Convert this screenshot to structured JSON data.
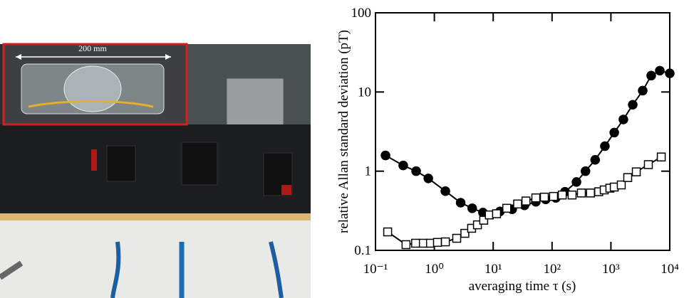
{
  "photo": {
    "inset_label": "200 mm"
  },
  "chart_data": {
    "type": "line",
    "xlabel": "averaging time τ (s)",
    "ylabel": "relative Allan standard deviation (pT)",
    "xscale": "log",
    "yscale": "log",
    "xlim": [
      0.1,
      10000
    ],
    "ylim": [
      0.1,
      100
    ],
    "xticks": [
      {
        "value": 0.1,
        "label": "10⁻¹"
      },
      {
        "value": 1,
        "label": "10⁰"
      },
      {
        "value": 10,
        "label": "10¹"
      },
      {
        "value": 100,
        "label": "10²"
      },
      {
        "value": 1000,
        "label": "10³"
      },
      {
        "value": 10000,
        "label": "10⁴"
      }
    ],
    "yticks": [
      0.1,
      1,
      10,
      100
    ],
    "series": [
      {
        "color": "#000000",
        "marker": "circle",
        "filled": true,
        "x": [
          0.148,
          0.296,
          0.49,
          0.79,
          1.54,
          2.8,
          4.4,
          6.7,
          13,
          21,
          34,
          53,
          78,
          116,
          166,
          260,
          370,
          540,
          790,
          1140,
          1630,
          2350,
          3470,
          4840,
          6770,
          10000
        ],
        "values": [
          1.58,
          1.18,
          1.0,
          0.81,
          0.56,
          0.4,
          0.34,
          0.3,
          0.31,
          0.33,
          0.37,
          0.41,
          0.44,
          0.46,
          0.55,
          0.73,
          1.0,
          1.39,
          2.07,
          3.07,
          4.5,
          6.9,
          10.4,
          16.1,
          18.6,
          17.2
        ]
      },
      {
        "color": "#000000",
        "marker": "square",
        "filled": false,
        "x": [
          0.161,
          0.33,
          0.48,
          0.65,
          0.86,
          1.13,
          1.54,
          2.4,
          3.3,
          4.3,
          5.4,
          6.9,
          8.6,
          11.4,
          17,
          26,
          36,
          53,
          74,
          106,
          149,
          219,
          315,
          450,
          620,
          770,
          960,
          1140,
          1500,
          1930,
          2700,
          4330,
          7170
        ],
        "values": [
          0.171,
          0.118,
          0.123,
          0.123,
          0.123,
          0.126,
          0.128,
          0.142,
          0.164,
          0.19,
          0.21,
          0.24,
          0.28,
          0.29,
          0.34,
          0.385,
          0.42,
          0.46,
          0.47,
          0.48,
          0.5,
          0.5,
          0.53,
          0.53,
          0.55,
          0.58,
          0.61,
          0.63,
          0.67,
          0.83,
          0.98,
          1.21,
          1.51
        ]
      }
    ]
  }
}
